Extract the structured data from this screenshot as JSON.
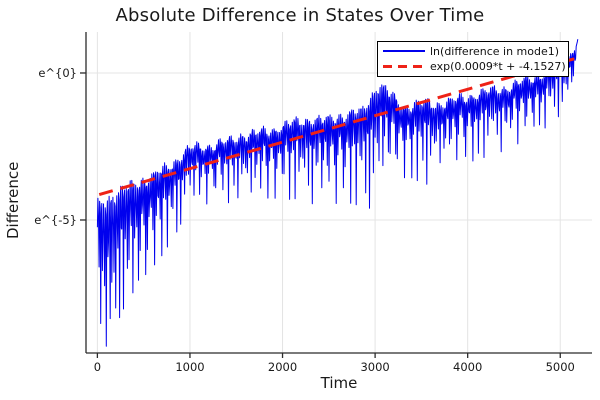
{
  "figure": {
    "background": "#ffffff",
    "title": "Absolute Difference in States Over Time"
  },
  "chart_data": {
    "type": "line",
    "title": "Absolute Difference in States Over Time",
    "xlabel": "Time",
    "ylabel": "Difference",
    "grid": true,
    "legend_position": "top-right",
    "x_ticks": [
      0,
      1000,
      2000,
      3000,
      4000,
      5000
    ],
    "y_ticks": [
      {
        "label": "e^{0}",
        "value": 0
      },
      {
        "label": "e^{-5}",
        "value": -5
      }
    ],
    "xlim": [
      -123,
      5343
    ],
    "ylim": [
      -9.524,
      1.394
    ],
    "colors": {
      "signal": "#0000ee",
      "fit": "#ee2217",
      "grid": "#e4e4e4",
      "spine": "#2b2b2b",
      "tick_text": "#1a1a1a"
    },
    "series": [
      {
        "name": "ln(difference in mode1)",
        "color": "#0000ee",
        "style": "solid",
        "description": "natural log of absolute state difference, rapidly oscillating",
        "t_start": 0,
        "t_end": 5195,
        "envelope_upper": [
          [
            0,
            -4.45
          ],
          [
            80,
            -4.3
          ],
          [
            200,
            -4.05
          ],
          [
            300,
            -3.9
          ],
          [
            400,
            -3.75
          ],
          [
            500,
            -3.6
          ],
          [
            600,
            -3.45
          ],
          [
            700,
            -3.3
          ],
          [
            800,
            -3.1
          ],
          [
            900,
            -2.8
          ],
          [
            1000,
            -2.55
          ],
          [
            1150,
            -2.5
          ],
          [
            1300,
            -2.4
          ],
          [
            1450,
            -2.3
          ],
          [
            1550,
            -2.1
          ],
          [
            1700,
            -2.05
          ],
          [
            1850,
            -1.95
          ],
          [
            2000,
            -1.8
          ],
          [
            2150,
            -1.65
          ],
          [
            2300,
            -1.55
          ],
          [
            2450,
            -1.6
          ],
          [
            2600,
            -1.45
          ],
          [
            2750,
            -1.35
          ],
          [
            2870,
            -1.28
          ],
          [
            2950,
            -0.8
          ],
          [
            3040,
            -0.35
          ],
          [
            3120,
            -0.55
          ],
          [
            3220,
            -0.9
          ],
          [
            3320,
            -1.15
          ],
          [
            3420,
            -1.05
          ],
          [
            3520,
            -1.0
          ],
          [
            3650,
            -1.05
          ],
          [
            3800,
            -0.95
          ],
          [
            3950,
            -0.85
          ],
          [
            4100,
            -0.7
          ],
          [
            4250,
            -0.6
          ],
          [
            4400,
            -0.5
          ],
          [
            4550,
            -0.35
          ],
          [
            4700,
            -0.15
          ],
          [
            4850,
            0.05
          ],
          [
            5000,
            0.3
          ],
          [
            5100,
            0.55
          ],
          [
            5195,
            1.25
          ]
        ],
        "envelope_spike_bottom": [
          [
            0,
            -7.2
          ],
          [
            60,
            -9.4
          ],
          [
            130,
            -9.2
          ],
          [
            200,
            -8.6
          ],
          [
            300,
            -7.9
          ],
          [
            400,
            -7.4
          ],
          [
            500,
            -7.0
          ],
          [
            600,
            -6.6
          ],
          [
            700,
            -6.2
          ],
          [
            800,
            -5.7
          ],
          [
            900,
            -5.2
          ],
          [
            1000,
            -4.5
          ],
          [
            1200,
            -4.45
          ],
          [
            1500,
            -4.4
          ],
          [
            1800,
            -4.3
          ],
          [
            2100,
            -4.3
          ],
          [
            2400,
            -4.5
          ],
          [
            2700,
            -4.4
          ],
          [
            3000,
            -4.65
          ],
          [
            3150,
            -3.9
          ],
          [
            3350,
            -3.5
          ],
          [
            3550,
            -3.8
          ],
          [
            3750,
            -3.35
          ],
          [
            3950,
            -3.1
          ],
          [
            4150,
            -2.9
          ],
          [
            4350,
            -2.7
          ],
          [
            4550,
            -2.4
          ],
          [
            4750,
            -2.1
          ],
          [
            4900,
            -1.7
          ],
          [
            5050,
            -1.3
          ],
          [
            5195,
            -0.5
          ]
        ],
        "depth_divisor": [
          [
            0,
            2.2
          ],
          [
            500,
            2.6
          ],
          [
            800,
            3.0
          ],
          [
            1200,
            3.2
          ],
          [
            5195,
            3.2
          ]
        ],
        "oscillation": {
          "sample_step": 6,
          "freq": 0.1571,
          "drift_freq": 0.0093,
          "drift_amp": 0.6,
          "floor": 0.0001,
          "jitter": [
            0.13,
            0.0531,
            0.09,
            0.0177
          ]
        }
      },
      {
        "name": "exp(0.0009*t + -4.1527)",
        "color": "#ee2217",
        "style": "dashed",
        "fit": {
          "slope": 0.0009,
          "intercept": -4.1527,
          "t_start": 20,
          "t_end": 5150
        }
      }
    ]
  }
}
